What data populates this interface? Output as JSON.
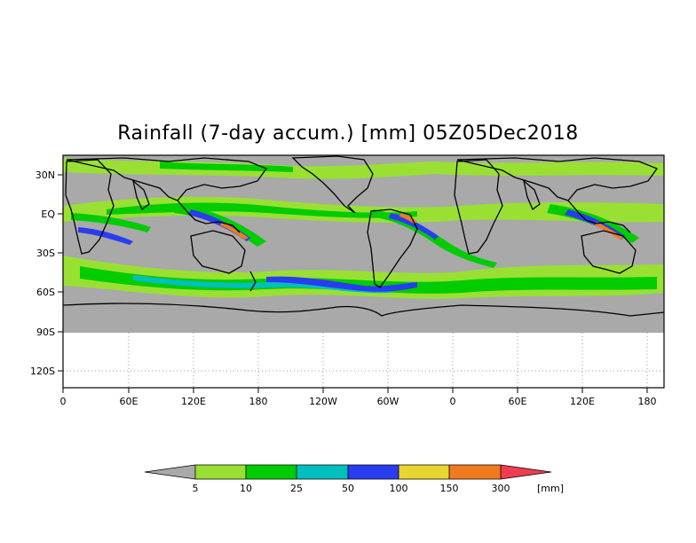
{
  "title": "Rainfall (7-day accum.) [mm] 05Z05Dec2018",
  "map": {
    "y_ticks": [
      "30N",
      "EQ",
      "30S",
      "60S",
      "90S",
      "120S"
    ],
    "x_ticks": [
      "0",
      "60E",
      "120E",
      "180",
      "120W",
      "60W",
      "0",
      "60E",
      "120E",
      "180"
    ],
    "land_mask_color": "#a9a9a9"
  },
  "legend": {
    "labels": [
      "5",
      "10",
      "25",
      "50",
      "100",
      "150",
      "300"
    ],
    "unit": "[mm]",
    "colors": [
      "#a9a9a9",
      "#99e033",
      "#00cc00",
      "#00bfbf",
      "#2a3cf0",
      "#e8d530",
      "#f07a1e",
      "#f03c50"
    ]
  }
}
